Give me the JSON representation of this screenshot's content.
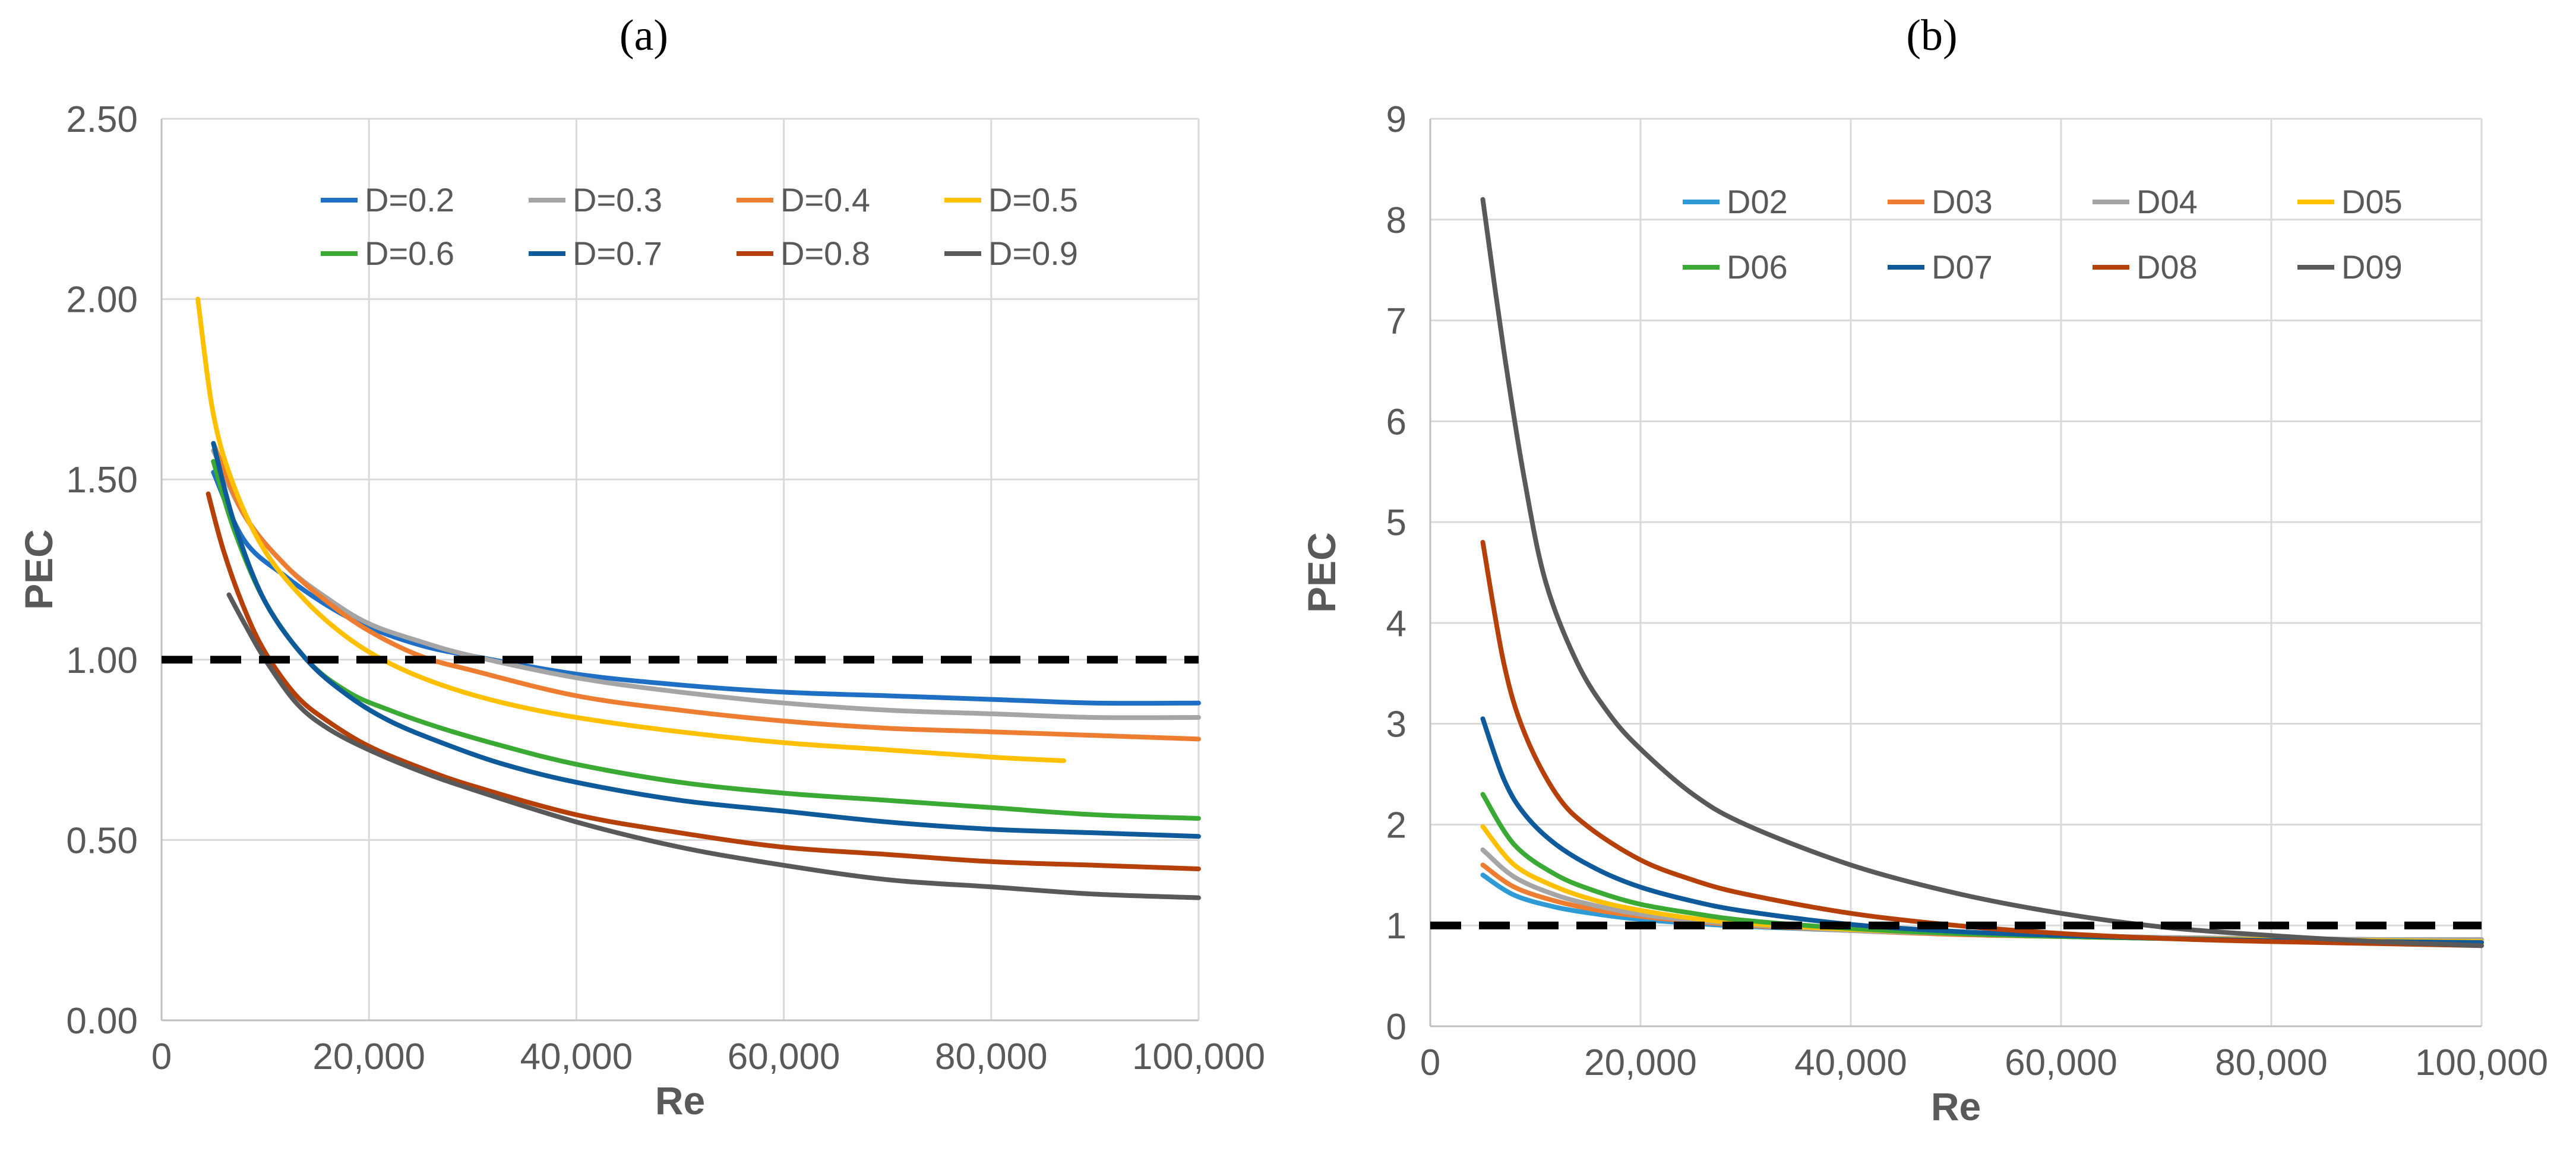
{
  "chart_data": [
    {
      "panel_label": "(a)",
      "type": "line",
      "xlabel": "Re",
      "ylabel": "PEC",
      "xlim": [
        0,
        100000
      ],
      "ylim": [
        0,
        2.5
      ],
      "xticks": [
        0,
        20000,
        40000,
        60000,
        80000,
        100000
      ],
      "xtick_labels": [
        "0",
        "20,000",
        "40,000",
        "60,000",
        "80,000",
        "100,000"
      ],
      "yticks": [
        0,
        0.5,
        1.0,
        1.5,
        2.0,
        2.5
      ],
      "ytick_labels": [
        "0.00",
        "0.50",
        "1.00",
        "1.50",
        "2.00",
        "2.50"
      ],
      "grid": true,
      "legend_position": "top-right",
      "legend_columns": 4,
      "reference_line": {
        "y": 1.0,
        "style": "dashed",
        "color": "#000000"
      },
      "series": [
        {
          "name": "D=0.2",
          "color": "#1F6FC5",
          "x": [
            5000,
            8000,
            12000,
            16000,
            20000,
            25000,
            30000,
            40000,
            50000,
            60000,
            70000,
            80000,
            90000,
            100000
          ],
          "y": [
            1.52,
            1.33,
            1.23,
            1.15,
            1.09,
            1.04,
            1.01,
            0.96,
            0.93,
            0.91,
            0.9,
            0.89,
            0.88,
            0.88
          ]
        },
        {
          "name": "D=0.3",
          "color": "#A5A5A5",
          "x": [
            5000,
            8000,
            12000,
            16000,
            20000,
            25000,
            30000,
            40000,
            50000,
            60000,
            70000,
            80000,
            90000,
            100000
          ],
          "y": [
            1.58,
            1.4,
            1.26,
            1.17,
            1.1,
            1.05,
            1.01,
            0.95,
            0.91,
            0.88,
            0.86,
            0.85,
            0.84,
            0.84
          ]
        },
        {
          "name": "D=0.4",
          "color": "#ED7D31",
          "x": [
            5000,
            8000,
            12000,
            16000,
            20000,
            25000,
            30000,
            40000,
            50000,
            60000,
            70000,
            80000,
            90000,
            100000
          ],
          "y": [
            1.6,
            1.4,
            1.26,
            1.16,
            1.08,
            1.01,
            0.97,
            0.9,
            0.86,
            0.83,
            0.81,
            0.8,
            0.79,
            0.78
          ]
        },
        {
          "name": "D=0.5",
          "color": "#FFC000",
          "x": [
            3500,
            5000,
            7000,
            10000,
            14000,
            18000,
            22000,
            27000,
            33000,
            40000,
            50000,
            60000,
            70000,
            80000,
            87000
          ],
          "y": [
            2.0,
            1.68,
            1.48,
            1.3,
            1.16,
            1.06,
            0.99,
            0.93,
            0.88,
            0.84,
            0.8,
            0.77,
            0.75,
            0.73,
            0.72
          ]
        },
        {
          "name": "D=0.6",
          "color": "#3AAA35",
          "x": [
            5000,
            7000,
            10000,
            14000,
            18000,
            22000,
            27000,
            33000,
            40000,
            50000,
            60000,
            70000,
            80000,
            90000,
            100000
          ],
          "y": [
            1.55,
            1.36,
            1.16,
            1.0,
            0.91,
            0.86,
            0.81,
            0.76,
            0.71,
            0.66,
            0.63,
            0.61,
            0.59,
            0.57,
            0.56
          ]
        },
        {
          "name": "D=0.7",
          "color": "#0E5A9A",
          "x": [
            5000,
            7000,
            10000,
            14000,
            18000,
            22000,
            27000,
            33000,
            40000,
            50000,
            60000,
            70000,
            80000,
            90000,
            100000
          ],
          "y": [
            1.6,
            1.38,
            1.16,
            1.0,
            0.9,
            0.83,
            0.77,
            0.71,
            0.66,
            0.61,
            0.58,
            0.55,
            0.53,
            0.52,
            0.51
          ]
        },
        {
          "name": "D=0.8",
          "color": "#B5400A",
          "x": [
            4500,
            6000,
            8000,
            10000,
            13000,
            16000,
            20000,
            25000,
            30000,
            40000,
            50000,
            60000,
            70000,
            80000,
            90000,
            100000
          ],
          "y": [
            1.46,
            1.3,
            1.14,
            1.02,
            0.9,
            0.83,
            0.76,
            0.7,
            0.65,
            0.57,
            0.52,
            0.48,
            0.46,
            0.44,
            0.43,
            0.42
          ]
        },
        {
          "name": "D=0.9",
          "color": "#595959",
          "x": [
            6500,
            8000,
            10000,
            13000,
            16000,
            20000,
            25000,
            30000,
            40000,
            50000,
            60000,
            70000,
            80000,
            90000,
            100000
          ],
          "y": [
            1.18,
            1.1,
            1.0,
            0.88,
            0.81,
            0.75,
            0.69,
            0.64,
            0.55,
            0.48,
            0.43,
            0.39,
            0.37,
            0.35,
            0.34
          ]
        }
      ]
    },
    {
      "panel_label": "(b)",
      "type": "line",
      "xlabel": "Re",
      "ylabel": "PEC",
      "xlim": [
        0,
        100000
      ],
      "ylim": [
        0,
        9
      ],
      "xticks": [
        0,
        20000,
        40000,
        60000,
        80000,
        100000
      ],
      "xtick_labels": [
        "0",
        "20,000",
        "40,000",
        "60,000",
        "80,000",
        "100,000"
      ],
      "yticks": [
        0,
        1,
        2,
        3,
        4,
        5,
        6,
        7,
        8,
        9
      ],
      "ytick_labels": [
        "0",
        "1",
        "2",
        "3",
        "4",
        "5",
        "6",
        "7",
        "8",
        "9"
      ],
      "grid": true,
      "legend_position": "top-right",
      "legend_columns": 4,
      "reference_line": {
        "y": 1.0,
        "style": "dashed",
        "color": "#000000"
      },
      "series": [
        {
          "name": "D02",
          "color": "#2E9BD6",
          "x": [
            5000,
            8000,
            12000,
            16000,
            20000,
            25000,
            30000,
            40000,
            50000,
            60000,
            70000,
            80000,
            90000,
            100000
          ],
          "y": [
            1.5,
            1.3,
            1.18,
            1.11,
            1.06,
            1.02,
            0.99,
            0.95,
            0.92,
            0.9,
            0.88,
            0.87,
            0.86,
            0.86
          ]
        },
        {
          "name": "D03",
          "color": "#ED7D31",
          "x": [
            5000,
            8000,
            12000,
            16000,
            20000,
            25000,
            30000,
            40000,
            50000,
            60000,
            70000,
            80000,
            90000,
            100000
          ],
          "y": [
            1.6,
            1.38,
            1.24,
            1.15,
            1.09,
            1.04,
            1.0,
            0.95,
            0.91,
            0.89,
            0.87,
            0.86,
            0.85,
            0.84
          ]
        },
        {
          "name": "D04",
          "color": "#A5A5A5",
          "x": [
            5000,
            8000,
            12000,
            16000,
            20000,
            25000,
            30000,
            40000,
            50000,
            60000,
            70000,
            80000,
            90000,
            100000
          ],
          "y": [
            1.75,
            1.48,
            1.3,
            1.19,
            1.11,
            1.05,
            1.01,
            0.95,
            0.92,
            0.9,
            0.88,
            0.87,
            0.86,
            0.86
          ]
        },
        {
          "name": "D05",
          "color": "#FFC000",
          "x": [
            5000,
            8000,
            12000,
            16000,
            20000,
            25000,
            30000,
            40000,
            50000,
            60000,
            70000,
            80000,
            90000,
            100000
          ],
          "y": [
            1.98,
            1.6,
            1.38,
            1.24,
            1.15,
            1.07,
            1.02,
            0.96,
            0.92,
            0.89,
            0.87,
            0.86,
            0.85,
            0.84
          ]
        },
        {
          "name": "D06",
          "color": "#3AAA35",
          "x": [
            5000,
            8000,
            12000,
            16000,
            20000,
            25000,
            30000,
            40000,
            50000,
            60000,
            70000,
            80000,
            90000,
            100000
          ],
          "y": [
            2.3,
            1.8,
            1.5,
            1.33,
            1.21,
            1.12,
            1.05,
            0.97,
            0.92,
            0.89,
            0.87,
            0.85,
            0.84,
            0.83
          ]
        },
        {
          "name": "D07",
          "color": "#0E5A9A",
          "x": [
            5000,
            7000,
            9000,
            12000,
            16000,
            20000,
            25000,
            30000,
            40000,
            50000,
            60000,
            70000,
            80000,
            90000,
            100000
          ],
          "y": [
            3.05,
            2.45,
            2.1,
            1.8,
            1.55,
            1.38,
            1.24,
            1.14,
            1.01,
            0.94,
            0.9,
            0.87,
            0.85,
            0.84,
            0.83
          ]
        },
        {
          "name": "D08",
          "color": "#B5400A",
          "x": [
            5000,
            7000,
            9000,
            12000,
            15000,
            20000,
            25000,
            30000,
            40000,
            50000,
            60000,
            70000,
            80000,
            90000,
            100000
          ],
          "y": [
            4.8,
            3.6,
            2.9,
            2.3,
            1.98,
            1.65,
            1.45,
            1.31,
            1.12,
            1.0,
            0.92,
            0.87,
            0.84,
            0.82,
            0.8
          ]
        },
        {
          "name": "D09",
          "color": "#595959",
          "x": [
            5000,
            7000,
            9000,
            11000,
            14000,
            17000,
            20000,
            25000,
            30000,
            40000,
            50000,
            60000,
            70000,
            80000,
            90000,
            100000
          ],
          "y": [
            8.2,
            6.7,
            5.4,
            4.4,
            3.6,
            3.1,
            2.75,
            2.3,
            2.0,
            1.6,
            1.32,
            1.12,
            0.98,
            0.9,
            0.84,
            0.8
          ]
        }
      ]
    }
  ]
}
